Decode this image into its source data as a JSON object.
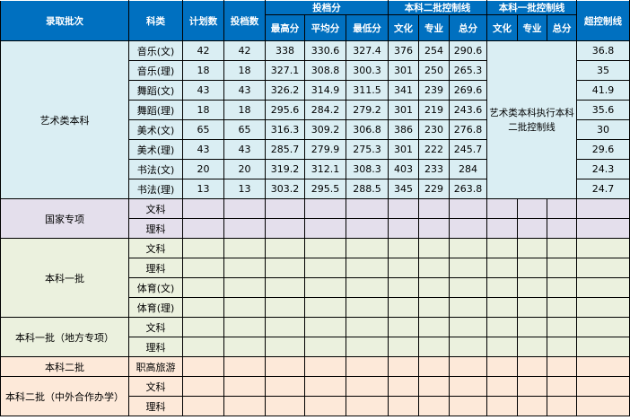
{
  "header": {
    "batch": "录取批次",
    "category": "科类",
    "plan": "计划数",
    "filed": "投档数",
    "filed_score": "投档分",
    "max": "最高分",
    "avg": "平均分",
    "min": "最低分",
    "line2": "本科二批控制线",
    "line1": "本科一批控制线",
    "culture": "文化",
    "major": "专业",
    "total": "总分",
    "over": "超控制线"
  },
  "art": {
    "batch": "艺术类本科",
    "note": "艺术类本科执行本科二批控制线",
    "rows": [
      [
        "音乐(文)",
        "42",
        "42",
        "338",
        "330.6",
        "327.4",
        "376",
        "254",
        "290.6",
        "36.8"
      ],
      [
        "音乐(理)",
        "18",
        "18",
        "327.1",
        "308.8",
        "300.3",
        "301",
        "250",
        "265.3",
        "35"
      ],
      [
        "舞蹈(文)",
        "43",
        "43",
        "326.2",
        "314.9",
        "311.5",
        "341",
        "239",
        "269.6",
        "41.9"
      ],
      [
        "舞蹈(理)",
        "18",
        "18",
        "295.6",
        "284.2",
        "279.2",
        "301",
        "219",
        "243.6",
        "35.6"
      ],
      [
        "美术(文)",
        "65",
        "65",
        "316.3",
        "309.2",
        "306.8",
        "386",
        "230",
        "276.8",
        "30"
      ],
      [
        "美术(理)",
        "43",
        "43",
        "285.7",
        "279.9",
        "275.3",
        "301",
        "222",
        "245.7",
        "29.6"
      ],
      [
        "书法(文)",
        "20",
        "20",
        "319.2",
        "312.1",
        "308.3",
        "403",
        "233",
        "284",
        "24.3"
      ],
      [
        "书法(理)",
        "13",
        "13",
        "303.2",
        "295.5",
        "288.5",
        "345",
        "229",
        "263.8",
        "24.7"
      ]
    ]
  },
  "groups": [
    {
      "batch": "国家专项",
      "color": "#e4dfec",
      "cls": "nat",
      "categories": [
        "文科",
        "理科"
      ]
    },
    {
      "batch": "本科一批",
      "color": "#ebf1de",
      "cls": "grn",
      "categories": [
        "文科",
        "理科",
        "体育(文)",
        "体育(理)"
      ]
    },
    {
      "batch": "本科一批（地方专项）",
      "color": "#ebf1de",
      "cls": "grn",
      "categories": [
        "文科",
        "理科"
      ]
    },
    {
      "batch": "本科二批",
      "color": "#fde9d9",
      "cls": "pch",
      "categories": [
        "职高旅游"
      ]
    },
    {
      "batch": "本科二批（中外合作办学）",
      "color": "#fde9d9",
      "cls": "pch",
      "categories": [
        "文科",
        "理科"
      ]
    }
  ],
  "colors": {
    "header": "#0070c0",
    "art": "#daeef3"
  }
}
